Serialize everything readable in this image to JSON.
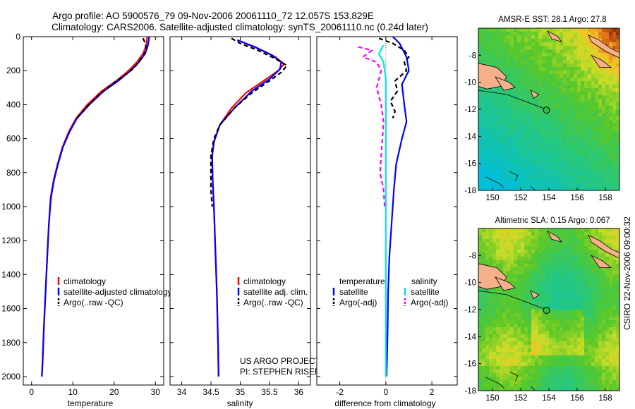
{
  "title": {
    "line1": "Argo profile: AO 5900576_79 09-Nov-2006 20061110_72 12.057S 153.829E",
    "line2": "Climatology: CARS2006. Satellite-adjusted climatology: synTS_20061110.nc (0.24d later)"
  },
  "side_label": "CSIRO 22-Nov-2006 09:00:32",
  "colors": {
    "climatology": "#ff0000",
    "satellite": "#0000ff",
    "argo": "#000000",
    "sal_satellite": "#00e5ee",
    "sal_argo": "#ff00ff",
    "land": "#f5b08a"
  },
  "chart_data": [
    {
      "type": "line",
      "name": "temperature",
      "xlabel": "temperature",
      "xlim": [
        -2,
        32
      ],
      "xticks": [
        0,
        10,
        20,
        30
      ],
      "ylim": [
        2050,
        0
      ],
      "yticks": [
        0,
        200,
        400,
        600,
        800,
        1000,
        1200,
        1400,
        1600,
        1800,
        2000
      ],
      "legend": [
        "climatology",
        "satellite-adjusted climatology",
        "Argo(..raw -QC)"
      ],
      "series": [
        {
          "name": "climatology",
          "color": "#ff0000",
          "dash": "",
          "points": [
            [
              28.0,
              0
            ],
            [
              27.8,
              50
            ],
            [
              27.0,
              100
            ],
            [
              25.5,
              150
            ],
            [
              23.5,
              200
            ],
            [
              20.5,
              260
            ],
            [
              17.0,
              320
            ],
            [
              13.5,
              400
            ],
            [
              10.8,
              480
            ],
            [
              9.0,
              560
            ],
            [
              7.5,
              650
            ],
            [
              6.3,
              750
            ],
            [
              5.3,
              850
            ],
            [
              4.6,
              950
            ],
            [
              4.2,
              1100
            ],
            [
              3.8,
              1300
            ],
            [
              3.4,
              1500
            ],
            [
              3.0,
              1700
            ],
            [
              2.7,
              1900
            ],
            [
              2.5,
              2000
            ]
          ]
        },
        {
          "name": "satellite",
          "color": "#0000ff",
          "dash": "",
          "points": [
            [
              28.5,
              0
            ],
            [
              28.2,
              50
            ],
            [
              27.5,
              100
            ],
            [
              26.0,
              150
            ],
            [
              24.0,
              200
            ],
            [
              21.0,
              260
            ],
            [
              17.5,
              320
            ],
            [
              14.0,
              400
            ],
            [
              11.0,
              480
            ],
            [
              9.2,
              560
            ],
            [
              7.6,
              650
            ],
            [
              6.4,
              750
            ],
            [
              5.4,
              850
            ],
            [
              4.7,
              950
            ],
            [
              4.2,
              1100
            ],
            [
              3.8,
              1300
            ],
            [
              3.4,
              1500
            ],
            [
              3.0,
              1700
            ],
            [
              2.7,
              1900
            ],
            [
              2.5,
              2000
            ]
          ]
        },
        {
          "name": "Argo",
          "color": "#000000",
          "dash": "6,4",
          "points": [
            [
              27.0,
              10
            ],
            [
              27.6,
              40
            ],
            [
              27.8,
              80
            ],
            [
              26.5,
              130
            ],
            [
              25.0,
              180
            ],
            [
              23.0,
              220
            ],
            [
              20.0,
              270
            ],
            [
              16.5,
              340
            ],
            [
              13.5,
              410
            ],
            [
              11.0,
              480
            ]
          ]
        }
      ]
    },
    {
      "type": "line",
      "name": "salinity",
      "xlabel": "salinity",
      "xlim": [
        33.8,
        36.2
      ],
      "xticks": [
        34,
        34.5,
        35,
        35.5,
        36
      ],
      "ylim": [
        2050,
        0
      ],
      "legend": [
        "climatology",
        "satellite adj. clim.",
        "Argo(..raw -QC)"
      ],
      "series": [
        {
          "name": "climatology",
          "color": "#ff0000",
          "dash": "",
          "points": [
            [
              34.95,
              20
            ],
            [
              35.3,
              70
            ],
            [
              35.6,
              120
            ],
            [
              35.75,
              160
            ],
            [
              35.65,
              200
            ],
            [
              35.4,
              260
            ],
            [
              35.1,
              330
            ],
            [
              34.85,
              420
            ],
            [
              34.65,
              520
            ],
            [
              34.55,
              620
            ],
            [
              34.52,
              700
            ],
            [
              34.53,
              850
            ],
            [
              34.55,
              1000
            ],
            [
              34.57,
              1200
            ],
            [
              34.6,
              1500
            ],
            [
              34.62,
              1800
            ],
            [
              34.63,
              2000
            ]
          ]
        },
        {
          "name": "satellite",
          "color": "#0000ff",
          "dash": "",
          "points": [
            [
              34.95,
              20
            ],
            [
              35.25,
              60
            ],
            [
              35.55,
              110
            ],
            [
              35.7,
              150
            ],
            [
              35.68,
              190
            ],
            [
              35.5,
              250
            ],
            [
              35.2,
              320
            ],
            [
              34.9,
              420
            ],
            [
              34.65,
              520
            ],
            [
              34.55,
              620
            ],
            [
              34.52,
              700
            ],
            [
              34.53,
              850
            ],
            [
              34.55,
              1000
            ],
            [
              34.57,
              1200
            ],
            [
              34.6,
              1500
            ],
            [
              34.62,
              1800
            ],
            [
              34.63,
              2000
            ]
          ]
        },
        {
          "name": "Argo",
          "color": "#000000",
          "dash": "6,4",
          "points": [
            [
              34.85,
              10
            ],
            [
              35.0,
              40
            ],
            [
              35.3,
              80
            ],
            [
              35.6,
              130
            ],
            [
              35.8,
              170
            ],
            [
              35.7,
              210
            ],
            [
              35.5,
              260
            ],
            [
              35.2,
              330
            ],
            [
              34.9,
              420
            ],
            [
              34.65,
              520
            ],
            [
              34.55,
              600
            ],
            [
              34.5,
              700
            ],
            [
              34.5,
              900
            ],
            [
              34.52,
              1000
            ]
          ]
        }
      ]
    },
    {
      "type": "line",
      "name": "difference",
      "xlabel": "difference from climatology",
      "xlim": [
        -3,
        3.1
      ],
      "xticks": [
        -2,
        0,
        2
      ],
      "ylim": [
        2050,
        0
      ],
      "legend_left_title": "temperature",
      "legend_right_title": "salinity",
      "legend_left": [
        "satellite",
        "Argo(-adj)"
      ],
      "legend_right": [
        "satellite",
        "Argo(-adj)"
      ],
      "series": [
        {
          "name": "temp satellite",
          "color": "#0000ff",
          "dash": "",
          "points": [
            [
              0.3,
              0
            ],
            [
              0.6,
              40
            ],
            [
              0.9,
              120
            ],
            [
              1.0,
              200
            ],
            [
              0.7,
              280
            ],
            [
              0.8,
              400
            ],
            [
              0.9,
              500
            ],
            [
              0.7,
              600
            ],
            [
              0.45,
              750
            ],
            [
              0.35,
              900
            ],
            [
              0.25,
              1100
            ],
            [
              0.15,
              1300
            ],
            [
              0.1,
              1500
            ],
            [
              0.08,
              1700
            ],
            [
              0.05,
              1900
            ],
            [
              0.03,
              2000
            ]
          ]
        },
        {
          "name": "temp Argo",
          "color": "#000000",
          "dash": "6,4",
          "points": [
            [
              -0.3,
              10
            ],
            [
              0.3,
              40
            ],
            [
              0.8,
              80
            ],
            [
              1.0,
              120
            ],
            [
              0.8,
              150
            ],
            [
              0.9,
              200
            ],
            [
              0.4,
              260
            ],
            [
              0.5,
              320
            ],
            [
              0.2,
              380
            ],
            [
              0.4,
              440
            ],
            [
              0.3,
              480
            ]
          ]
        },
        {
          "name": "sal satellite",
          "color": "#00e5ee",
          "dash": "",
          "points": [
            [
              -0.1,
              50
            ],
            [
              -0.3,
              100
            ],
            [
              -0.1,
              150
            ],
            [
              0.0,
              250
            ],
            [
              0.0,
              500
            ],
            [
              0.0,
              1000
            ],
            [
              0.0,
              1500
            ],
            [
              0.0,
              2000
            ]
          ]
        },
        {
          "name": "sal Argo",
          "color": "#ff00ff",
          "dash": "6,4",
          "points": [
            [
              -1.2,
              60
            ],
            [
              -0.6,
              80
            ],
            [
              -1.0,
              120
            ],
            [
              -0.4,
              150
            ],
            [
              -0.2,
              200
            ],
            [
              -0.4,
              300
            ],
            [
              -0.2,
              400
            ],
            [
              -0.1,
              500
            ],
            [
              -0.15,
              600
            ],
            [
              -0.2,
              700
            ],
            [
              -0.25,
              800
            ],
            [
              -0.1,
              900
            ],
            [
              -0.05,
              1000
            ]
          ]
        }
      ],
      "reference_line_x": 0
    },
    {
      "type": "heatmap",
      "name": "sst_map",
      "title": "AMSR-E SST: 28.1 Argo: 27.8",
      "xlim": [
        149,
        159
      ],
      "ylim": [
        -18,
        -6
      ],
      "xticks": [
        150,
        152,
        154,
        156,
        158
      ],
      "yticks": [
        -8,
        -10,
        -12,
        -14,
        -16,
        -18
      ],
      "float_position": [
        153.83,
        -12.06
      ]
    },
    {
      "type": "heatmap",
      "name": "sla_map",
      "title": "Altimetric SLA: 0.15 Argo: 0.067",
      "xlim": [
        149,
        159
      ],
      "ylim": [
        -18,
        -6
      ],
      "xticks": [
        150,
        152,
        154,
        156,
        158
      ],
      "yticks": [
        -8,
        -10,
        -12,
        -14,
        -16,
        -18
      ],
      "float_position": [
        153.83,
        -12.06
      ]
    }
  ],
  "credits": {
    "line1": "US ARGO PROJECT",
    "line2": "PI: STEPHEN RISER"
  }
}
